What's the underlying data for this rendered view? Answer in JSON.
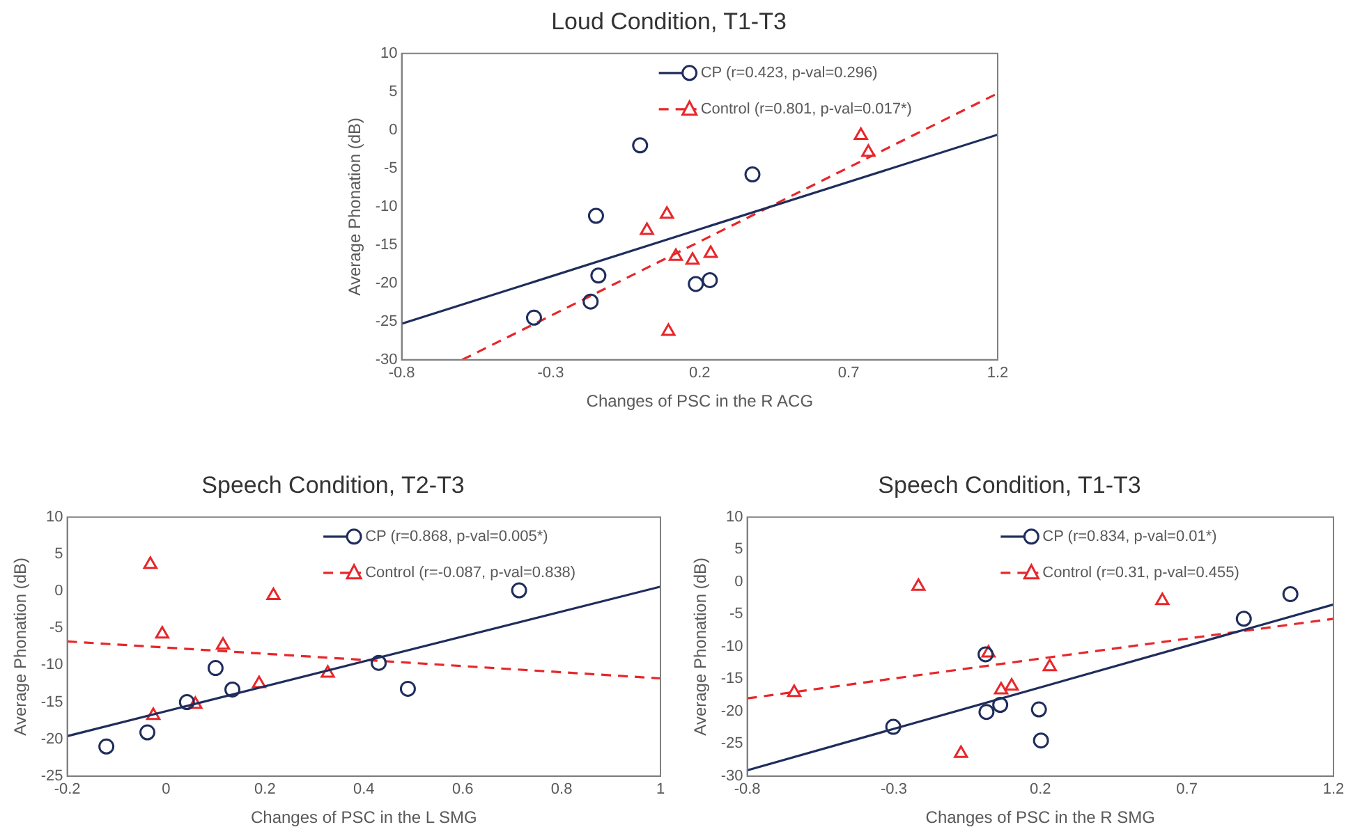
{
  "chart_data": [
    {
      "type": "scatter",
      "title": "Loud Condition, T1-T3",
      "xlabel": "Changes of PSC in the R ACG",
      "ylabel": "Average Phonation (dB)",
      "xlim": [
        -0.8,
        1.2
      ],
      "xticks": [
        -0.8,
        -0.3,
        0.2,
        0.7,
        1.2
      ],
      "ylim": [
        -30,
        10
      ],
      "yticks": [
        -30,
        -25,
        -20,
        -15,
        -10,
        -5,
        0,
        5,
        10
      ],
      "grid": false,
      "legend": "top right",
      "series": [
        {
          "name": "CP (r=0.423, p-val=0.296)",
          "type": "scatter",
          "marker": "circle",
          "color": "#1f2d5c",
          "x": [
            -0.356,
            -0.166,
            -0.14,
            -0.148,
            0.0,
            0.187,
            0.234,
            0.377
          ],
          "values": [
            -24.5,
            -22.4,
            -19,
            -11.2,
            -2,
            -20.1,
            -19.6,
            -5.8
          ]
        },
        {
          "type": "line",
          "line_style": "solid",
          "marker": "none",
          "color": "#1f2d5c",
          "x": [
            -0.8,
            1.2
          ],
          "values": [
            -25.3,
            -0.6
          ]
        },
        {
          "name": "Control (r=0.801, p-val=0.017*)",
          "type": "scatter",
          "marker": "triangle",
          "color": "#e8262a",
          "x": [
            0.023,
            0.09,
            0.095,
            0.12,
            0.176,
            0.237,
            0.741,
            0.766
          ],
          "values": [
            -13.1,
            -11,
            -26.3,
            -16.5,
            -17,
            -16.1,
            -0.7,
            -2.9
          ]
        },
        {
          "type": "line",
          "line_style": "dashed",
          "marker": "none",
          "color": "#e8262a",
          "x": [
            -0.597,
            1.2
          ],
          "values": [
            -30,
            4.8
          ]
        }
      ]
    },
    {
      "type": "scatter",
      "title": "Speech Condition, T2-T3",
      "xlabel": "Changes of PSC in the L SMG",
      "ylabel": "Average Phonation (dB)",
      "xlim": [
        -0.2,
        1
      ],
      "xticks": [
        -0.2,
        0,
        0.2,
        0.4,
        0.6,
        0.8,
        1
      ],
      "ylim": [
        -25,
        10
      ],
      "yticks": [
        -25,
        -20,
        -15,
        -10,
        -5,
        0,
        5,
        10
      ],
      "grid": false,
      "legend": "top right",
      "series": [
        {
          "name": "CP (r=0.868, p-val=0.005*)",
          "type": "scatter",
          "marker": "circle",
          "color": "#1f2d5c",
          "x": [
            -0.121,
            -0.038,
            0.042,
            0.1,
            0.134,
            0.43,
            0.489,
            0.714
          ],
          "values": [
            -21,
            -19.1,
            -15,
            -10.4,
            -13.3,
            -9.7,
            -13.2,
            0.1
          ]
        },
        {
          "type": "line",
          "line_style": "solid",
          "marker": "none",
          "color": "#1f2d5c",
          "x": [
            -0.2,
            1
          ],
          "values": [
            -19.6,
            0.6
          ]
        },
        {
          "name": "Control (r=-0.087, p-val=0.838)",
          "type": "scatter",
          "marker": "triangle",
          "color": "#e8262a",
          "x": [
            -0.032,
            -0.026,
            -0.008,
            0.059,
            0.115,
            0.188,
            0.217,
            0.327
          ],
          "values": [
            3.6,
            -16.8,
            -5.8,
            -15.3,
            -7.3,
            -12.5,
            -0.6,
            -11.1
          ]
        },
        {
          "type": "line",
          "line_style": "dashed",
          "marker": "none",
          "color": "#e8262a",
          "x": [
            -0.2,
            1
          ],
          "values": [
            -6.8,
            -11.8
          ]
        }
      ]
    },
    {
      "type": "scatter",
      "title": "Speech Condition, T1-T3",
      "xlabel": "Changes of PSC in the R SMG",
      "ylabel": "Average Phonation (dB)",
      "xlim": [
        -0.8,
        1.2
      ],
      "xticks": [
        -0.8,
        -0.3,
        0.2,
        0.7,
        1.2
      ],
      "ylim": [
        -30,
        10
      ],
      "yticks": [
        -30,
        -25,
        -20,
        -15,
        -10,
        -5,
        0,
        5,
        10
      ],
      "grid": false,
      "legend": "top right",
      "series": [
        {
          "name": "CP (r=0.834, p-val=0.01*)",
          "type": "scatter",
          "marker": "circle",
          "color": "#1f2d5c",
          "x": [
            -0.302,
            0.013,
            0.016,
            0.063,
            0.195,
            0.202,
            0.894,
            1.053
          ],
          "values": [
            -22.4,
            -11.2,
            -20.1,
            -19,
            -19.7,
            -24.5,
            -5.7,
            -1.9
          ]
        },
        {
          "type": "line",
          "line_style": "solid",
          "marker": "none",
          "color": "#1f2d5c",
          "x": [
            -0.8,
            1.2
          ],
          "values": [
            -29.1,
            -3.5
          ]
        },
        {
          "name": "Control (r=0.31, p-val=0.455)",
          "type": "scatter",
          "marker": "triangle",
          "color": "#e8262a",
          "x": [
            -0.64,
            -0.216,
            -0.071,
            0.023,
            0.066,
            0.102,
            0.232,
            0.616
          ],
          "values": [
            -17.1,
            -0.7,
            -26.5,
            -11,
            -16.7,
            -16.1,
            -13.1,
            -2.9
          ]
        },
        {
          "type": "line",
          "line_style": "dashed",
          "marker": "none",
          "color": "#e8262a",
          "x": [
            -0.8,
            1.2
          ],
          "values": [
            -18,
            -5.7
          ]
        }
      ]
    }
  ]
}
